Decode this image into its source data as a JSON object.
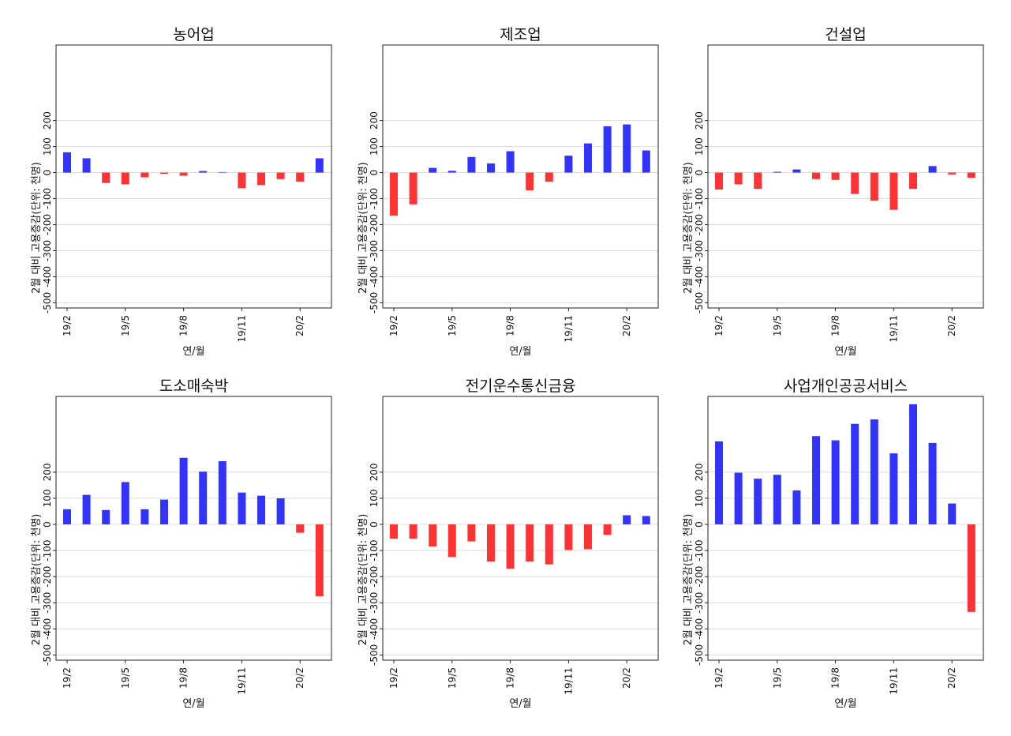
{
  "chart_data": [
    {
      "type": "bar",
      "title": "농어업",
      "xlabel": "연/월",
      "ylabel": "2월 대비 고용증감(단위: 천명)",
      "categories": [
        "19/2",
        "19/3",
        "19/4",
        "19/5",
        "19/6",
        "19/7",
        "19/8",
        "19/9",
        "19/10",
        "19/11",
        "19/12",
        "20/1",
        "20/2",
        "20/3"
      ],
      "x_tick_labels": [
        "19/2",
        "19/5",
        "19/8",
        "19/11",
        "20/2"
      ],
      "y_ticks": [
        -500,
        -400,
        -300,
        -200,
        -100,
        0,
        100,
        200
      ],
      "ylim": [
        -520,
        490
      ],
      "grid": true,
      "values": [
        78,
        55,
        -40,
        -45,
        -18,
        -5,
        -12,
        6,
        2,
        -60,
        -48,
        -25,
        -35,
        55
      ],
      "colors": {
        "positive": "#3333ff",
        "negative": "#ff3333"
      }
    },
    {
      "type": "bar",
      "title": "제조업",
      "xlabel": "연/월",
      "ylabel": "2월 대비 고용증감(단위: 천명)",
      "categories": [
        "19/2",
        "19/3",
        "19/4",
        "19/5",
        "19/6",
        "19/7",
        "19/8",
        "19/9",
        "19/10",
        "19/11",
        "19/12",
        "20/1",
        "20/2",
        "20/3"
      ],
      "x_tick_labels": [
        "19/2",
        "19/5",
        "19/8",
        "19/11",
        "20/2"
      ],
      "y_ticks": [
        -500,
        -400,
        -300,
        -200,
        -100,
        0,
        100,
        200
      ],
      "ylim": [
        -520,
        490
      ],
      "grid": true,
      "values": [
        -165,
        -122,
        18,
        7,
        60,
        35,
        82,
        -68,
        -35,
        65,
        112,
        178,
        185,
        85
      ],
      "colors": {
        "positive": "#3333ff",
        "negative": "#ff3333"
      }
    },
    {
      "type": "bar",
      "title": "건설업",
      "xlabel": "연/월",
      "ylabel": "2월 대비 고용증감(단위: 천명)",
      "categories": [
        "19/2",
        "19/3",
        "19/4",
        "19/5",
        "19/6",
        "19/7",
        "19/8",
        "19/9",
        "19/10",
        "19/11",
        "19/12",
        "20/1",
        "20/2",
        "20/3"
      ],
      "x_tick_labels": [
        "19/2",
        "19/5",
        "19/8",
        "19/11",
        "20/2"
      ],
      "y_ticks": [
        -500,
        -400,
        -300,
        -200,
        -100,
        0,
        100,
        200
      ],
      "ylim": [
        -520,
        490
      ],
      "grid": true,
      "values": [
        -65,
        -45,
        -62,
        3,
        12,
        -25,
        -28,
        -82,
        -108,
        -143,
        -62,
        25,
        -7,
        -20
      ],
      "colors": {
        "positive": "#3333ff",
        "negative": "#ff3333"
      }
    },
    {
      "type": "bar",
      "title": "도소매숙박",
      "xlabel": "연/월",
      "ylabel": "2월 대비 고용증감(단위: 천명)",
      "categories": [
        "19/2",
        "19/3",
        "19/4",
        "19/5",
        "19/6",
        "19/7",
        "19/8",
        "19/9",
        "19/10",
        "19/11",
        "19/12",
        "20/1",
        "20/2",
        "20/3"
      ],
      "x_tick_labels": [
        "19/2",
        "19/5",
        "19/8",
        "19/11",
        "20/2"
      ],
      "y_ticks": [
        -500,
        -400,
        -300,
        -200,
        -100,
        0,
        100,
        200
      ],
      "ylim": [
        -520,
        490
      ],
      "grid": true,
      "values": [
        58,
        113,
        55,
        162,
        58,
        95,
        255,
        202,
        242,
        122,
        110,
        100,
        -32,
        -275
      ],
      "colors": {
        "positive": "#3333ff",
        "negative": "#ff3333"
      }
    },
    {
      "type": "bar",
      "title": "전기운수통신금융",
      "xlabel": "연/월",
      "ylabel": "2월 대비 고용증감(단위: 천명)",
      "categories": [
        "19/2",
        "19/3",
        "19/4",
        "19/5",
        "19/6",
        "19/7",
        "19/8",
        "19/9",
        "19/10",
        "19/11",
        "19/12",
        "20/1",
        "20/2",
        "20/3"
      ],
      "x_tick_labels": [
        "19/2",
        "19/5",
        "19/8",
        "19/11",
        "20/2"
      ],
      "y_ticks": [
        -500,
        -400,
        -300,
        -200,
        -100,
        0,
        100,
        200
      ],
      "ylim": [
        -520,
        490
      ],
      "grid": true,
      "values": [
        -55,
        -55,
        -85,
        -125,
        -65,
        -142,
        -170,
        -142,
        -153,
        -98,
        -95,
        -40,
        35,
        32
      ],
      "colors": {
        "positive": "#3333ff",
        "negative": "#ff3333"
      }
    },
    {
      "type": "bar",
      "title": "사업개인공공서비스",
      "xlabel": "연/월",
      "ylabel": "2월 대비 고용증감(단위: 천명)",
      "categories": [
        "19/2",
        "19/3",
        "19/4",
        "19/5",
        "19/6",
        "19/7",
        "19/8",
        "19/9",
        "19/10",
        "19/11",
        "19/12",
        "20/1",
        "20/2",
        "20/3"
      ],
      "x_tick_labels": [
        "19/2",
        "19/5",
        "19/8",
        "19/11",
        "20/2"
      ],
      "y_ticks": [
        -500,
        -400,
        -300,
        -200,
        -100,
        0,
        100,
        200
      ],
      "ylim": [
        -520,
        490
      ],
      "grid": true,
      "values": [
        318,
        198,
        175,
        190,
        130,
        338,
        322,
        385,
        402,
        272,
        460,
        312,
        80,
        -335
      ],
      "colors": {
        "positive": "#3333ff",
        "negative": "#ff3333"
      }
    }
  ]
}
